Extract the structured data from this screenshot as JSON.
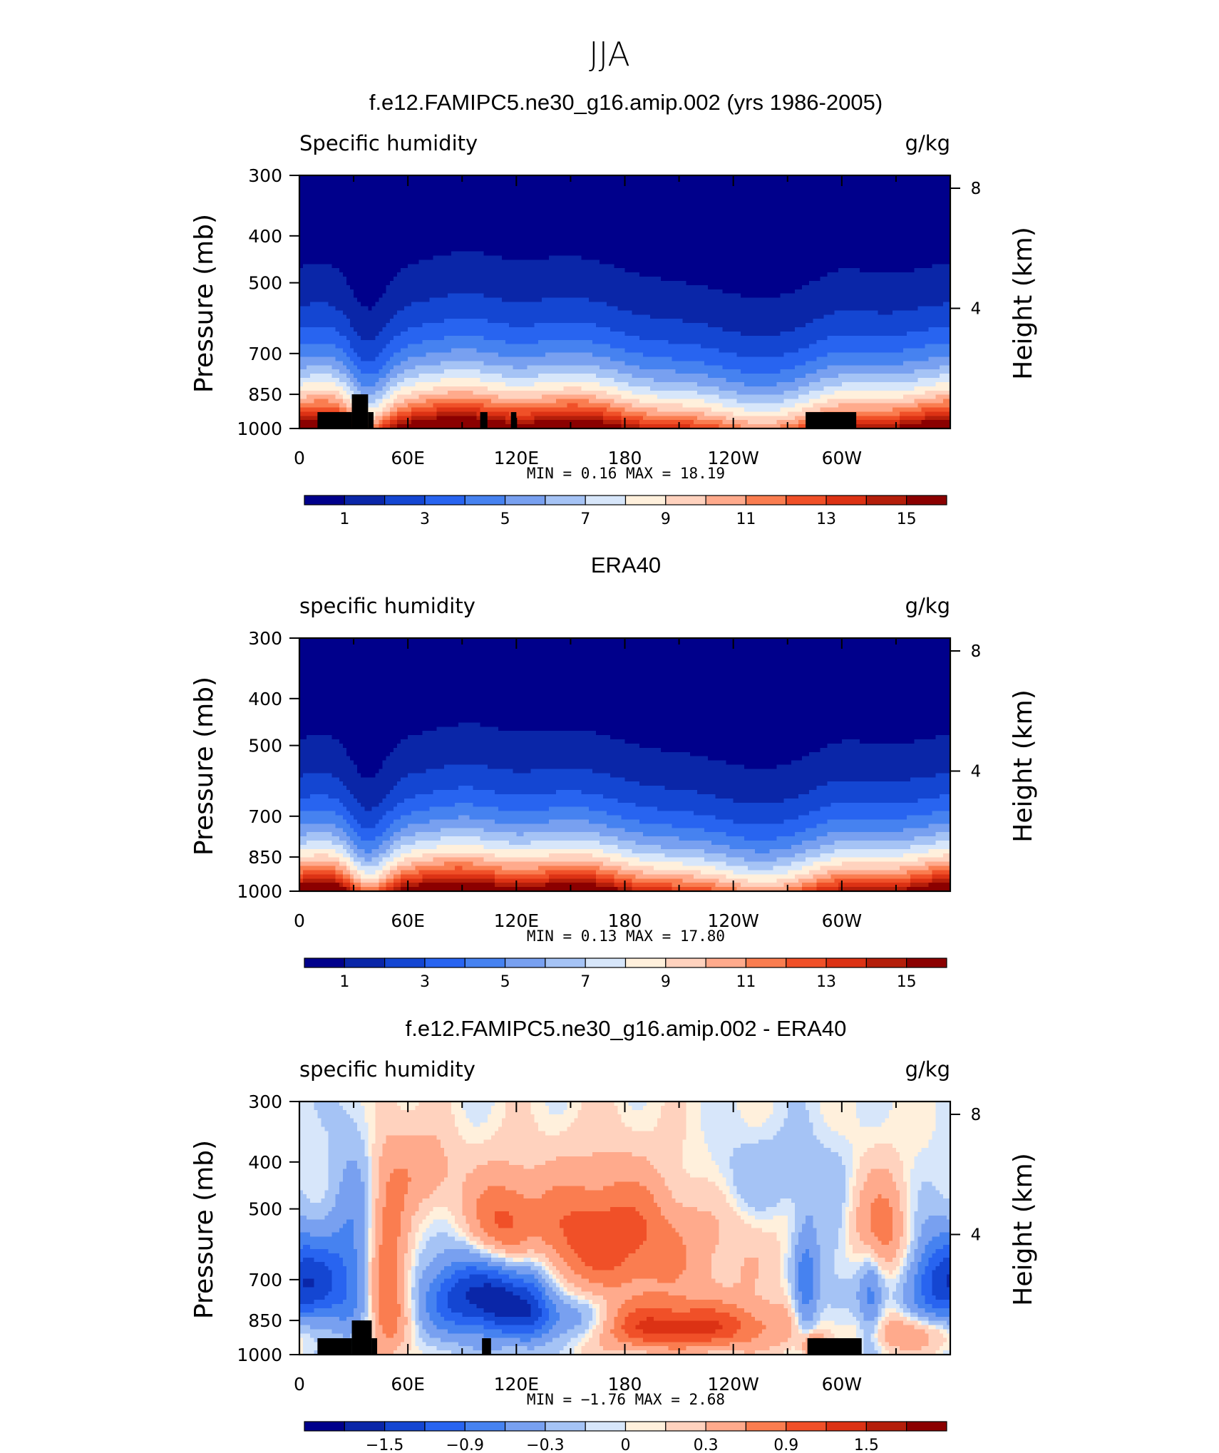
{
  "figure": {
    "season": "JJA",
    "colors": [
      "#00008b",
      "#0a26a8",
      "#1446d2",
      "#2864f0",
      "#4682f0",
      "#78a0f0",
      "#a5c3f5",
      "#d7e6fa",
      "#fff0dc",
      "#ffd2be",
      "#ffaa8c",
      "#fa7d50",
      "#f05028",
      "#dc3214",
      "#b41e0a",
      "#8b0000"
    ],
    "land_color": "#000000"
  },
  "chart_data": [
    {
      "type": "heatmap",
      "title": "f.e12.FAMIPC5.ne30_g16.amip.002 (yrs 1986-2005)",
      "left_label": "Specific humidity",
      "right_label": "g/kg",
      "ylabel": "Pressure (mb)",
      "ylabel_right": "Height (km)",
      "y_ticks": [
        "300",
        "400",
        "500",
        "700",
        "850",
        "1000"
      ],
      "y_tick_values": [
        300,
        400,
        500,
        700,
        850,
        1000
      ],
      "y_right_ticks": [
        "8",
        "4"
      ],
      "y_right_values": [
        8,
        4
      ],
      "xlim": [
        0,
        360
      ],
      "ylim": [
        1000,
        300
      ],
      "x_ticks": [
        "0",
        "60E",
        "120E",
        "180",
        "120W",
        "60W"
      ],
      "x_tick_values": [
        0,
        60,
        120,
        180,
        240,
        300
      ],
      "stats": "MIN =    0.16  MAX =   18.19",
      "colorbar": {
        "labels": [
          "1",
          "3",
          "5",
          "7",
          "9",
          "11",
          "13",
          "15"
        ],
        "levels": [
          1,
          2,
          3,
          4,
          5,
          6,
          7,
          8,
          9,
          10,
          11,
          12,
          13,
          14,
          15
        ]
      },
      "field": {
        "kind": "absolute",
        "surface_max": 17.4,
        "fall": 1.0
      },
      "topography": [
        [
          10,
          29,
          1000,
          925
        ],
        [
          29,
          38,
          1000,
          850
        ],
        [
          38,
          41,
          1000,
          925
        ],
        [
          100,
          104,
          1000,
          925
        ],
        [
          117,
          120,
          1000,
          925
        ],
        [
          280,
          308,
          1000,
          925
        ]
      ]
    },
    {
      "type": "heatmap",
      "title": "ERA40",
      "left_label": "specific humidity",
      "right_label": "g/kg",
      "ylabel": "Pressure (mb)",
      "ylabel_right": "Height (km)",
      "y_ticks": [
        "300",
        "400",
        "500",
        "700",
        "850",
        "1000"
      ],
      "y_tick_values": [
        300,
        400,
        500,
        700,
        850,
        1000
      ],
      "y_right_ticks": [
        "8",
        "4"
      ],
      "y_right_values": [
        8,
        4
      ],
      "xlim": [
        0,
        360
      ],
      "ylim": [
        1000,
        300
      ],
      "x_ticks": [
        "0",
        "60E",
        "120E",
        "180",
        "120W",
        "60W"
      ],
      "x_tick_values": [
        0,
        60,
        120,
        180,
        240,
        300
      ],
      "stats": "MIN =    0.13  MAX =   17.80",
      "colorbar": {
        "labels": [
          "1",
          "3",
          "5",
          "7",
          "9",
          "11",
          "13",
          "15"
        ],
        "levels": [
          1,
          2,
          3,
          4,
          5,
          6,
          7,
          8,
          9,
          10,
          11,
          12,
          13,
          14,
          15
        ]
      },
      "field": {
        "kind": "absolute",
        "surface_max": 17.1,
        "fall": 0.95
      },
      "topography": []
    },
    {
      "type": "heatmap",
      "title": "f.e12.FAMIPC5.ne30_g16.amip.002 - ERA40",
      "left_label": "specific humidity",
      "right_label": "g/kg",
      "ylabel": "Pressure (mb)",
      "ylabel_right": "Height (km)",
      "y_ticks": [
        "300",
        "400",
        "500",
        "700",
        "850",
        "1000"
      ],
      "y_tick_values": [
        300,
        400,
        500,
        700,
        850,
        1000
      ],
      "y_right_ticks": [
        "8",
        "4"
      ],
      "y_right_values": [
        8,
        4
      ],
      "xlim": [
        0,
        360
      ],
      "ylim": [
        1000,
        300
      ],
      "x_ticks": [
        "0",
        "60E",
        "120E",
        "180",
        "120W",
        "60W"
      ],
      "x_tick_values": [
        0,
        60,
        120,
        180,
        240,
        300
      ],
      "stats": "MIN =   −1.76  MAX =    2.68",
      "colorbar": {
        "labels": [
          "−1.5",
          "−0.9",
          "−0.3",
          "0",
          "0.3",
          "0.9",
          "1.5"
        ],
        "levels": [
          -1.8,
          -1.5,
          -1.2,
          -0.9,
          -0.6,
          -0.3,
          -0.1,
          0,
          0.1,
          0.3,
          0.6,
          0.9,
          1.2,
          1.5,
          1.8
        ],
        "label_levels": [
          -1.5,
          -0.9,
          -0.3,
          0,
          0.3,
          0.9,
          1.5
        ]
      },
      "field": {
        "kind": "difference",
        "blobs": [
          [
            10,
            720,
            12,
            110,
            -1.1
          ],
          [
            32,
            640,
            10,
            200,
            -0.7
          ],
          [
            48,
            700,
            9,
            220,
            1.1
          ],
          [
            97,
            760,
            20,
            110,
            -1.6
          ],
          [
            148,
            850,
            18,
            70,
            -1.0
          ],
          [
            128,
            760,
            8,
            130,
            -0.8
          ],
          [
            112,
            760,
            8,
            120,
            -0.5
          ],
          [
            112,
            550,
            14,
            90,
            1.0
          ],
          [
            166,
            560,
            30,
            110,
            0.9
          ],
          [
            208,
            880,
            42,
            70,
            1.2
          ],
          [
            200,
            660,
            50,
            160,
            0.35
          ],
          [
            258,
            430,
            26,
            60,
            -0.3
          ],
          [
            280,
            760,
            5,
            160,
            -0.8
          ],
          [
            300,
            630,
            14,
            130,
            -0.35
          ],
          [
            316,
            780,
            5,
            130,
            -0.7
          ],
          [
            320,
            560,
            12,
            100,
            0.9
          ],
          [
            350,
            710,
            12,
            120,
            -1.0
          ],
          [
            340,
            900,
            16,
            60,
            0.7
          ],
          [
            284,
            960,
            5,
            40,
            1.0
          ],
          [
            70,
            420,
            12,
            60,
            0.5
          ]
        ]
      },
      "topography": [
        [
          10,
          29,
          1000,
          925
        ],
        [
          29,
          40,
          1000,
          850
        ],
        [
          40,
          43,
          1000,
          925
        ],
        [
          101,
          106,
          1000,
          925
        ],
        [
          281,
          311,
          1000,
          925
        ]
      ]
    }
  ]
}
